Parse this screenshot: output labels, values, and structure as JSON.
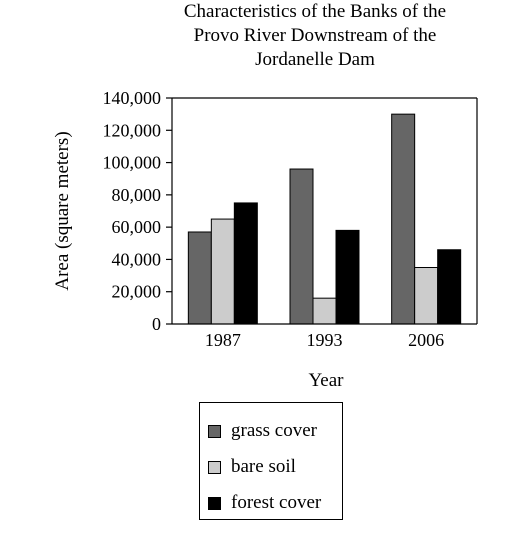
{
  "chart_data": {
    "type": "bar",
    "title_lines": [
      "Characteristics of the Banks of the",
      "Provo River Downstream of the",
      "Jordanelle Dam"
    ],
    "xlabel": "Year",
    "ylabel": "Area (square meters)",
    "categories": [
      "1987",
      "1993",
      "2006"
    ],
    "ylim": [
      0,
      140000
    ],
    "yticks": [
      0,
      20000,
      40000,
      60000,
      80000,
      100000,
      120000,
      140000
    ],
    "ytick_labels": [
      "0",
      "20,000",
      "40,000",
      "60,000",
      "80,000",
      "100,000",
      "120,000",
      "140,000"
    ],
    "grid": false,
    "legend_position": "bottom-center",
    "series": [
      {
        "name": "grass cover",
        "color": "#666666",
        "values": [
          57000,
          96000,
          130000
        ]
      },
      {
        "name": "bare soil",
        "color": "#cccccc",
        "values": [
          65000,
          16000,
          35000
        ]
      },
      {
        "name": "forest cover",
        "color": "#000000",
        "values": [
          75000,
          58000,
          46000
        ]
      }
    ]
  }
}
